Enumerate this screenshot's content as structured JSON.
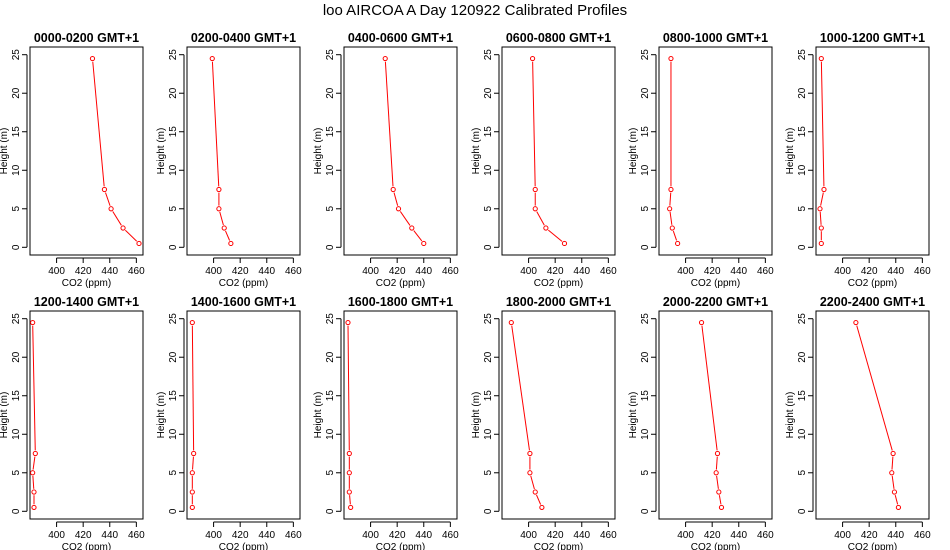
{
  "title": "loo AIRCOA A  Day 120922  Calibrated Profiles",
  "colors": {
    "profile_line": "#ff0000",
    "axis": "#000000",
    "background": "#ffffff"
  },
  "chart_data": [
    {
      "type": "line",
      "title": "0000-0200 GMT+1",
      "xlabel": "CO2 (ppm)",
      "ylabel": "Height (m)",
      "xlim": [
        380,
        465
      ],
      "ylim": [
        -1,
        26
      ],
      "xticks": [
        400,
        420,
        440,
        460
      ],
      "yticks": [
        0,
        5,
        10,
        15,
        20,
        25
      ],
      "grid": false,
      "series": [
        {
          "x": [
            462,
            450,
            441,
            436,
            427
          ],
          "y": [
            0.5,
            2.5,
            5,
            7.5,
            24.5
          ]
        }
      ]
    },
    {
      "type": "line",
      "title": "0200-0400 GMT+1",
      "xlabel": "CO2 (ppm)",
      "ylabel": "Height (m)",
      "xlim": [
        380,
        465
      ],
      "ylim": [
        -1,
        26
      ],
      "xticks": [
        400,
        420,
        440,
        460
      ],
      "yticks": [
        0,
        5,
        10,
        15,
        20,
        25
      ],
      "grid": false,
      "series": [
        {
          "x": [
            413,
            408,
            404,
            404,
            399
          ],
          "y": [
            0.5,
            2.5,
            5,
            7.5,
            24.5
          ]
        }
      ]
    },
    {
      "type": "line",
      "title": "0400-0600 GMT+1",
      "xlabel": "CO2 (ppm)",
      "ylabel": "Height (m)",
      "xlim": [
        380,
        465
      ],
      "ylim": [
        -1,
        26
      ],
      "xticks": [
        400,
        420,
        440,
        460
      ],
      "yticks": [
        0,
        5,
        10,
        15,
        20,
        25
      ],
      "grid": false,
      "series": [
        {
          "x": [
            440,
            431,
            421,
            417,
            411
          ],
          "y": [
            0.5,
            2.5,
            5,
            7.5,
            24.5
          ]
        }
      ]
    },
    {
      "type": "line",
      "title": "0600-0800 GMT+1",
      "xlabel": "CO2 (ppm)",
      "ylabel": "Height (m)",
      "xlim": [
        380,
        465
      ],
      "ylim": [
        -1,
        26
      ],
      "xticks": [
        400,
        420,
        440,
        460
      ],
      "yticks": [
        0,
        5,
        10,
        15,
        20,
        25
      ],
      "grid": false,
      "series": [
        {
          "x": [
            427,
            413,
            405,
            405,
            403
          ],
          "y": [
            0.5,
            2.5,
            5,
            7.5,
            24.5
          ]
        }
      ]
    },
    {
      "type": "line",
      "title": "0800-1000 GMT+1",
      "xlabel": "CO2 (ppm)",
      "ylabel": "Height (m)",
      "xlim": [
        380,
        465
      ],
      "ylim": [
        -1,
        26
      ],
      "xticks": [
        400,
        420,
        440,
        460
      ],
      "yticks": [
        0,
        5,
        10,
        15,
        20,
        25
      ],
      "grid": false,
      "series": [
        {
          "x": [
            394,
            390,
            388,
            389,
            389
          ],
          "y": [
            0.5,
            2.5,
            5,
            7.5,
            24.5
          ]
        }
      ]
    },
    {
      "type": "line",
      "title": "1000-1200 GMT+1",
      "xlabel": "CO2 (ppm)",
      "ylabel": "Height (m)",
      "xlim": [
        380,
        465
      ],
      "ylim": [
        -1,
        26
      ],
      "xticks": [
        400,
        420,
        440,
        460
      ],
      "yticks": [
        0,
        5,
        10,
        15,
        20,
        25
      ],
      "grid": false,
      "series": [
        {
          "x": [
            384,
            384,
            383,
            386,
            384
          ],
          "y": [
            0.5,
            2.5,
            5,
            7.5,
            24.5
          ]
        }
      ]
    },
    {
      "type": "line",
      "title": "1200-1400 GMT+1",
      "xlabel": "CO2 (ppm)",
      "ylabel": "Height (m)",
      "xlim": [
        380,
        465
      ],
      "ylim": [
        -1,
        26
      ],
      "xticks": [
        400,
        420,
        440,
        460
      ],
      "yticks": [
        0,
        5,
        10,
        15,
        20,
        25
      ],
      "grid": false,
      "series": [
        {
          "x": [
            383,
            383,
            382,
            384,
            382
          ],
          "y": [
            0.5,
            2.5,
            5,
            7.5,
            24.5
          ]
        }
      ]
    },
    {
      "type": "line",
      "title": "1400-1600 GMT+1",
      "xlabel": "CO2 (ppm)",
      "ylabel": "Height (m)",
      "xlim": [
        380,
        465
      ],
      "ylim": [
        -1,
        26
      ],
      "xticks": [
        400,
        420,
        440,
        460
      ],
      "yticks": [
        0,
        5,
        10,
        15,
        20,
        25
      ],
      "grid": false,
      "series": [
        {
          "x": [
            384,
            384,
            384,
            385,
            384
          ],
          "y": [
            0.5,
            2.5,
            5,
            7.5,
            24.5
          ]
        }
      ]
    },
    {
      "type": "line",
      "title": "1600-1800 GMT+1",
      "xlabel": "CO2 (ppm)",
      "ylabel": "Height (m)",
      "xlim": [
        380,
        465
      ],
      "ylim": [
        -1,
        26
      ],
      "xticks": [
        400,
        420,
        440,
        460
      ],
      "yticks": [
        0,
        5,
        10,
        15,
        20,
        25
      ],
      "grid": false,
      "series": [
        {
          "x": [
            385,
            384,
            384,
            384,
            383
          ],
          "y": [
            0.5,
            2.5,
            5,
            7.5,
            24.5
          ]
        }
      ]
    },
    {
      "type": "line",
      "title": "1800-2000 GMT+1",
      "xlabel": "CO2 (ppm)",
      "ylabel": "Height (m)",
      "xlim": [
        380,
        465
      ],
      "ylim": [
        -1,
        26
      ],
      "xticks": [
        400,
        420,
        440,
        460
      ],
      "yticks": [
        0,
        5,
        10,
        15,
        20,
        25
      ],
      "grid": false,
      "series": [
        {
          "x": [
            410,
            405,
            401,
            401,
            387
          ],
          "y": [
            0.5,
            2.5,
            5,
            7.5,
            24.5
          ]
        }
      ]
    },
    {
      "type": "line",
      "title": "2000-2200 GMT+1",
      "xlabel": "CO2 (ppm)",
      "ylabel": "Height (m)",
      "xlim": [
        380,
        465
      ],
      "ylim": [
        -1,
        26
      ],
      "xticks": [
        400,
        420,
        440,
        460
      ],
      "yticks": [
        0,
        5,
        10,
        15,
        20,
        25
      ],
      "grid": false,
      "series": [
        {
          "x": [
            427,
            425,
            423,
            424,
            412
          ],
          "y": [
            0.5,
            2.5,
            5,
            7.5,
            24.5
          ]
        }
      ]
    },
    {
      "type": "line",
      "title": "2200-2400 GMT+1",
      "xlabel": "CO2 (ppm)",
      "ylabel": "Height (m)",
      "xlim": [
        380,
        465
      ],
      "ylim": [
        -1,
        26
      ],
      "xticks": [
        400,
        420,
        440,
        460
      ],
      "yticks": [
        0,
        5,
        10,
        15,
        20,
        25
      ],
      "grid": false,
      "series": [
        {
          "x": [
            442,
            439,
            437,
            438,
            410
          ],
          "y": [
            0.5,
            2.5,
            5,
            7.5,
            24.5
          ]
        }
      ]
    }
  ]
}
